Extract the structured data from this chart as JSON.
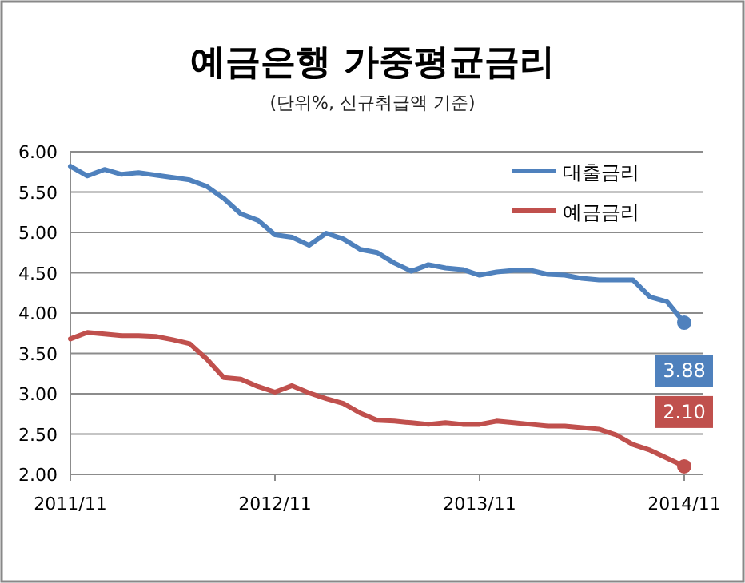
{
  "chart_data": {
    "type": "line",
    "title": "예금은행 가중평균금리",
    "subtitle": "(단위%, 신규취급액 기준)",
    "categories": [
      "2011/11",
      null,
      null,
      null,
      null,
      null,
      null,
      null,
      null,
      null,
      null,
      null,
      "2012/11",
      null,
      null,
      null,
      null,
      null,
      null,
      null,
      null,
      null,
      null,
      null,
      "2013/11",
      null,
      null,
      null,
      null,
      null,
      null,
      null,
      null,
      null,
      null,
      null,
      "2014/11"
    ],
    "series": [
      {
        "name": "대출금리",
        "color": "#4f81bd",
        "values": [
          5.82,
          5.7,
          5.78,
          5.72,
          5.74,
          5.71,
          5.68,
          5.65,
          5.57,
          5.42,
          5.23,
          5.15,
          4.97,
          4.94,
          4.84,
          4.99,
          4.92,
          4.79,
          4.75,
          4.62,
          4.52,
          4.6,
          4.56,
          4.54,
          4.47,
          4.51,
          4.53,
          4.53,
          4.48,
          4.47,
          4.43,
          4.41,
          4.41,
          4.41,
          4.2,
          4.14,
          3.88
        ],
        "value_labels": [
          null,
          null,
          null,
          null,
          null,
          null,
          null,
          null,
          null,
          null,
          null,
          null,
          null,
          null,
          null,
          null,
          null,
          null,
          null,
          null,
          null,
          null,
          null,
          null,
          null,
          null,
          null,
          null,
          null,
          null,
          null,
          null,
          null,
          null,
          null,
          null,
          "3.88"
        ]
      },
      {
        "name": "예금금리",
        "color": "#c0504d",
        "values": [
          3.68,
          3.76,
          3.74,
          3.72,
          3.72,
          3.71,
          3.67,
          3.62,
          3.43,
          3.2,
          3.18,
          3.09,
          3.02,
          3.1,
          3.01,
          2.94,
          2.88,
          2.76,
          2.67,
          2.66,
          2.64,
          2.62,
          2.64,
          2.62,
          2.62,
          2.66,
          2.64,
          2.62,
          2.6,
          2.6,
          2.58,
          2.56,
          2.49,
          2.37,
          2.3,
          2.2,
          2.1
        ],
        "value_labels": [
          null,
          null,
          null,
          null,
          null,
          null,
          null,
          null,
          null,
          null,
          null,
          null,
          null,
          null,
          null,
          null,
          null,
          null,
          null,
          null,
          null,
          null,
          null,
          null,
          null,
          null,
          null,
          null,
          null,
          null,
          null,
          null,
          null,
          null,
          null,
          null,
          "2.10"
        ]
      }
    ],
    "ylim": [
      2,
      6
    ],
    "yticks": [
      {
        "value": 2,
        "label": "2.00"
      },
      {
        "value": 2.5,
        "label": "2.50"
      },
      {
        "value": 3,
        "label": "3.00"
      },
      {
        "value": 3.5,
        "label": "3.50"
      },
      {
        "value": 4,
        "label": "4.00"
      },
      {
        "value": 4.5,
        "label": "4.50"
      },
      {
        "value": 5,
        "label": "5.00"
      },
      {
        "value": 5.5,
        "label": "5.50"
      },
      {
        "value": 6,
        "label": "6.00"
      }
    ],
    "grid": "y",
    "legend": "top right"
  }
}
